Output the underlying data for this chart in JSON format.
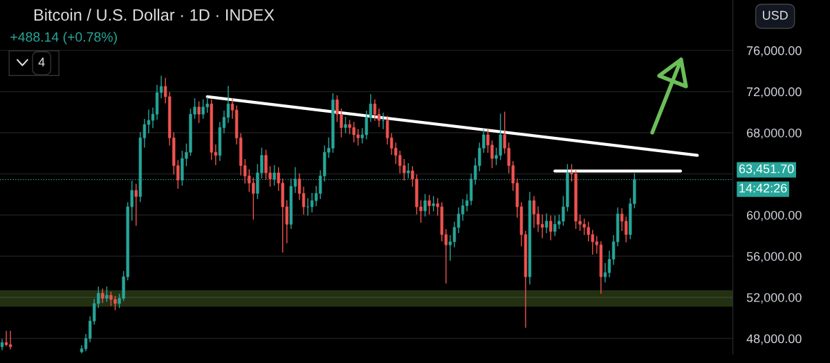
{
  "chart_data": {
    "type": "candlestick",
    "title": "Bitcoin / U.S. Dollar · 1D · INDEX",
    "annotations": [
      "+488.14 (+0.78%)",
      "4",
      "USD",
      "14:42:26"
    ],
    "categories": [
      null,
      null,
      null,
      null,
      null,
      null,
      null,
      null,
      null,
      null,
      null,
      null,
      null,
      null,
      null,
      null,
      null,
      null,
      null,
      null,
      null,
      null,
      null,
      null,
      null,
      null,
      null,
      null,
      null,
      null,
      null,
      null,
      null,
      null,
      null,
      null,
      null,
      null,
      null,
      null,
      null,
      null,
      null,
      null,
      null,
      null,
      null,
      null,
      null,
      null,
      null,
      null,
      null,
      null,
      null,
      null,
      null,
      null,
      null,
      null,
      null,
      null,
      null,
      null,
      null,
      null,
      null,
      null,
      null,
      null,
      null,
      null,
      null,
      null,
      null,
      null,
      null,
      null,
      null,
      null,
      null,
      null,
      null,
      null,
      null,
      null,
      null,
      null,
      null,
      null,
      null,
      null,
      null,
      null,
      null,
      null,
      null,
      null,
      null,
      null,
      null,
      null,
      null,
      null,
      null,
      null,
      null,
      null,
      null,
      null,
      null,
      null,
      null,
      null,
      null,
      null,
      null,
      null,
      null,
      null,
      null,
      null,
      null,
      null,
      null,
      null,
      null,
      null,
      null,
      null,
      null,
      null,
      null,
      null,
      null,
      null,
      null,
      null,
      null,
      null,
      null,
      null,
      null,
      null,
      null,
      null,
      null,
      null,
      null,
      null,
      null,
      null,
      null,
      null,
      null,
      null,
      null,
      null,
      null,
      null,
      null,
      null,
      null,
      null,
      null,
      null,
      null,
      null,
      null,
      null,
      null,
      null,
      null,
      null,
      null
    ],
    "colors": [
      "#26a69a",
      "#ef5350",
      "#ef5350",
      null,
      null,
      null,
      null,
      null,
      null,
      null,
      null,
      null,
      null,
      null,
      null,
      null,
      null,
      null,
      null,
      "#26a69a",
      "#26a69a",
      "#26a69a",
      "#26a69a",
      "#26a69a",
      "#ef5350",
      "#26a69a",
      "#ef5350",
      "#ef5350",
      "#26a69a",
      "#26a69a",
      "#26a69a",
      "#26a69a",
      "#ef5350",
      "#26a69a",
      "#26a69a",
      "#26a69a",
      "#26a69a",
      "#26a69a",
      "#26a69a",
      "#ef5350",
      "#ef5350",
      "#ef5350",
      "#ef5350",
      "#26a69a",
      "#26a69a",
      "#26a69a",
      "#26a69a",
      "#ef5350",
      "#26a69a",
      "#26a69a",
      "#ef5350",
      "#ef5350",
      "#26a69a",
      "#26a69a",
      "#26a69a",
      "#ef5350",
      "#ef5350",
      "#ef5350",
      "#ef5350",
      "#ef5350",
      "#ef5350",
      "#26a69a",
      "#26a69a",
      "#ef5350",
      "#ef5350",
      "#26a69a",
      "#ef5350",
      "#ef5350",
      "#ef5350",
      "#26a69a",
      "#26a69a",
      "#ef5350",
      "#ef5350",
      "#26a69a",
      "#26a69a",
      "#26a69a",
      "#26a69a",
      "#26a69a",
      "#26a69a",
      "#26a69a",
      "#ef5350",
      "#ef5350",
      "#26a69a",
      "#ef5350",
      "#ef5350",
      "#ef5350",
      "#26a69a",
      "#26a69a",
      "#26a69a",
      "#ef5350",
      "#ef5350",
      "#26a69a",
      "#ef5350",
      "#ef5350",
      "#ef5350",
      "#ef5350",
      "#ef5350",
      "#26a69a",
      "#ef5350",
      "#ef5350",
      "#ef5350",
      "#26a69a",
      "#ef5350",
      "#26a69a",
      "#ef5350",
      "#ef5350",
      "#ef5350",
      "#26a69a",
      "#26a69a",
      "#26a69a",
      "#26a69a",
      "#26a69a",
      "#26a69a",
      "#26a69a",
      "#26a69a",
      "#26a69a",
      "#ef5350",
      "#ef5350",
      "#26a69a",
      "#26a69a",
      "#ef5350",
      "#ef5350",
      "#ef5350",
      "#ef5350",
      "#ef5350",
      "#ef5350",
      "#26a69a",
      "#ef5350",
      "#ef5350",
      "#ef5350",
      "#26a69a",
      "#ef5350",
      "#26a69a",
      "#26a69a",
      "#26a69a",
      "#26a69a",
      "#ef5350",
      "#ef5350",
      "#ef5350",
      "#ef5350",
      "#ef5350",
      "#ef5350",
      "#ef5350",
      "#ef5350",
      "#26a69a",
      "#26a69a",
      "#26a69a",
      "#26a69a",
      "#ef5350",
      "#ef5350",
      "#26a69a",
      "#26a69a",
      null,
      null,
      null,
      null,
      null,
      null,
      null,
      null,
      null,
      null,
      null,
      null,
      null,
      null,
      null,
      null,
      null,
      null,
      null,
      null,
      null,
      null,
      null
    ],
    "ohlc": [
      [
        47200,
        47900,
        46900,
        47600
      ],
      [
        47600,
        48700,
        47300,
        47400
      ],
      [
        47400,
        48700,
        47000,
        47200
      ],
      null,
      null,
      null,
      null,
      null,
      null,
      null,
      null,
      null,
      null,
      null,
      null,
      null,
      null,
      null,
      null,
      [
        46700,
        47300,
        46600,
        47000
      ],
      [
        47000,
        48400,
        46800,
        48000
      ],
      [
        48000,
        50100,
        47700,
        49700
      ],
      [
        49700,
        51800,
        49400,
        51400
      ],
      [
        51400,
        53000,
        51000,
        52400
      ],
      [
        52400,
        52800,
        51500,
        51900
      ],
      [
        51900,
        53000,
        51600,
        52200
      ],
      [
        52200,
        52500,
        51200,
        51800
      ],
      [
        51800,
        52100,
        50800,
        51400
      ],
      [
        51400,
        52300,
        51000,
        51900
      ],
      [
        51900,
        54500,
        51700,
        54000
      ],
      [
        54000,
        61200,
        53700,
        60800
      ],
      [
        60800,
        63300,
        59500,
        62400
      ],
      [
        62400,
        63000,
        59000,
        61800
      ],
      [
        61800,
        68000,
        61300,
        67500
      ],
      [
        67500,
        69300,
        66600,
        68800
      ],
      [
        68800,
        70200,
        68000,
        69200
      ],
      [
        69200,
        70400,
        68500,
        69800
      ],
      [
        69800,
        72600,
        69300,
        71900
      ],
      [
        71900,
        73500,
        71400,
        72500
      ],
      [
        72500,
        73300,
        70900,
        71500
      ],
      [
        71500,
        71900,
        66800,
        67500
      ],
      [
        67500,
        68000,
        64000,
        64800
      ],
      [
        64800,
        65300,
        62600,
        63400
      ],
      [
        63400,
        66200,
        62900,
        65500
      ],
      [
        65500,
        66900,
        64800,
        66100
      ],
      [
        66100,
        70300,
        65800,
        69800
      ],
      [
        69800,
        71300,
        69400,
        70500
      ],
      [
        70500,
        71000,
        69000,
        69800
      ],
      [
        69800,
        71200,
        69400,
        70500
      ],
      [
        70500,
        71400,
        70000,
        70800
      ],
      [
        70800,
        71200,
        65400,
        66100
      ],
      [
        66100,
        66800,
        64900,
        65800
      ],
      [
        65800,
        69000,
        65300,
        68500
      ],
      [
        68500,
        70100,
        68000,
        69500
      ],
      [
        69500,
        72500,
        69000,
        70800
      ],
      [
        70800,
        71300,
        69400,
        70200
      ],
      [
        70200,
        70600,
        66900,
        67500
      ],
      [
        67500,
        67900,
        63900,
        64800
      ],
      [
        64800,
        65400,
        63100,
        63800
      ],
      [
        63800,
        64400,
        62300,
        63100
      ],
      [
        63100,
        63600,
        59600,
        62100
      ],
      [
        62100,
        64900,
        61600,
        64100
      ],
      [
        64100,
        66500,
        63600,
        65800
      ],
      [
        65800,
        66300,
        63500,
        64100
      ],
      [
        64100,
        64700,
        62800,
        63500
      ],
      [
        63500,
        64800,
        62900,
        64100
      ],
      [
        64100,
        64600,
        62400,
        63100
      ],
      [
        63100,
        63500,
        56400,
        60800
      ],
      [
        60800,
        61400,
        57300,
        59100
      ],
      [
        59100,
        63500,
        58700,
        62800
      ],
      [
        62800,
        64600,
        62200,
        63500
      ],
      [
        63500,
        64000,
        61500,
        62100
      ],
      [
        62100,
        62700,
        60100,
        60800
      ],
      [
        60800,
        61600,
        60000,
        60800
      ],
      [
        60800,
        62100,
        60300,
        61400
      ],
      [
        61400,
        62800,
        60900,
        62100
      ],
      [
        62100,
        64300,
        61600,
        63800
      ],
      [
        63800,
        66700,
        63300,
        66100
      ],
      [
        66100,
        67500,
        65600,
        66500
      ],
      [
        66500,
        71800,
        66100,
        71200
      ],
      [
        71200,
        71600,
        69100,
        69800
      ],
      [
        69800,
        70300,
        67600,
        68500
      ],
      [
        68500,
        69500,
        68000,
        68800
      ],
      [
        68800,
        69200,
        67900,
        68500
      ],
      [
        68500,
        69000,
        67100,
        67800
      ],
      [
        67800,
        68300,
        66800,
        67500
      ],
      [
        67500,
        68400,
        67000,
        67800
      ],
      [
        67800,
        70100,
        67400,
        69500
      ],
      [
        69500,
        71700,
        69100,
        70800
      ],
      [
        70800,
        71200,
        69200,
        69800
      ],
      [
        69800,
        70300,
        68600,
        69200
      ],
      [
        69200,
        69900,
        68400,
        69200
      ],
      [
        69200,
        69600,
        66900,
        67500
      ],
      [
        67500,
        67900,
        65900,
        66500
      ],
      [
        66500,
        67000,
        65000,
        65800
      ],
      [
        65800,
        66200,
        64100,
        64800
      ],
      [
        64800,
        65400,
        63400,
        64100
      ],
      [
        64100,
        65000,
        63600,
        64300
      ],
      [
        64300,
        64700,
        62800,
        63500
      ],
      [
        63500,
        63900,
        60100,
        60800
      ],
      [
        60800,
        61400,
        59300,
        60400
      ],
      [
        60400,
        62000,
        59900,
        61400
      ],
      [
        61400,
        61900,
        60100,
        60900
      ],
      [
        60900,
        61800,
        60400,
        61100
      ],
      [
        61100,
        61600,
        60000,
        60800
      ],
      [
        60800,
        61200,
        57500,
        58100
      ],
      [
        58100,
        58600,
        53400,
        57100
      ],
      [
        57100,
        58000,
        55600,
        57400
      ],
      [
        57400,
        59300,
        56900,
        58800
      ],
      [
        58800,
        60700,
        58300,
        60100
      ],
      [
        60100,
        61500,
        59500,
        60900
      ],
      [
        60900,
        62000,
        60400,
        61400
      ],
      [
        61400,
        64000,
        61000,
        63500
      ],
      [
        63500,
        65500,
        63000,
        64800
      ],
      [
        64800,
        67000,
        64300,
        66500
      ],
      [
        66500,
        68300,
        66100,
        67800
      ],
      [
        67800,
        68300,
        66100,
        66800
      ],
      [
        66800,
        67200,
        64600,
        65500
      ],
      [
        65500,
        66500,
        64900,
        65800
      ],
      [
        65800,
        69800,
        65400,
        67800
      ],
      [
        67800,
        70000,
        66000,
        66500
      ],
      [
        66500,
        67000,
        64100,
        64800
      ],
      [
        64800,
        65200,
        62400,
        63100
      ],
      [
        63100,
        63500,
        59800,
        60800
      ],
      [
        60800,
        61200,
        57000,
        58100
      ],
      [
        58100,
        58400,
        49100,
        54000
      ],
      [
        54000,
        62200,
        53300,
        61400
      ],
      [
        61400,
        61800,
        58800,
        60100
      ],
      [
        60100,
        60800,
        58400,
        59100
      ],
      [
        59100,
        60000,
        57800,
        58800
      ],
      [
        58800,
        60100,
        58300,
        59400
      ],
      [
        59400,
        59900,
        57600,
        58400
      ],
      [
        58400,
        59900,
        58000,
        59100
      ],
      [
        59100,
        60000,
        58700,
        59400
      ],
      [
        59400,
        61800,
        59000,
        60800
      ],
      [
        60800,
        64900,
        60400,
        64100
      ],
      [
        64100,
        64900,
        63300,
        64000
      ],
      [
        64000,
        64300,
        58700,
        59400
      ],
      [
        59400,
        60000,
        58500,
        59100
      ],
      [
        59100,
        59600,
        58100,
        58800
      ],
      [
        58800,
        59300,
        57500,
        58100
      ],
      [
        58100,
        58500,
        56200,
        57400
      ],
      [
        57400,
        57900,
        56300,
        57100
      ],
      [
        57100,
        57400,
        52400,
        54000
      ],
      [
        54000,
        55300,
        53500,
        54400
      ],
      [
        54400,
        56500,
        54000,
        55700
      ],
      [
        55700,
        58000,
        55200,
        57400
      ],
      [
        57400,
        60700,
        57000,
        60100
      ],
      [
        60100,
        60600,
        58500,
        59400
      ],
      [
        59400,
        59800,
        57400,
        58100
      ],
      [
        58100,
        61600,
        57700,
        61100
      ],
      [
        61100,
        64000,
        60700,
        63451.7
      ],
      null,
      null,
      null,
      null,
      null,
      null,
      null,
      null,
      null,
      null,
      null,
      null,
      null,
      null,
      null,
      null,
      null,
      null,
      null,
      null,
      null,
      null,
      null
    ],
    "series": [
      {
        "type": "line",
        "color": "#ffffff",
        "values": [
          null,
          null,
          null,
          null,
          null,
          null,
          null,
          null,
          null,
          null,
          null,
          null,
          null,
          null,
          null,
          null,
          null,
          null,
          null,
          null,
          null,
          null,
          null,
          null,
          null,
          null,
          null,
          null,
          null,
          null,
          null,
          null,
          null,
          null,
          null,
          null,
          null,
          null,
          null,
          null,
          null,
          null,
          null,
          null,
          null,
          null,
          null,
          null,
          null,
          71500,
          null,
          null,
          null,
          null,
          null,
          null,
          null,
          null,
          null,
          null,
          null,
          null,
          null,
          null,
          null,
          null,
          null,
          null,
          null,
          null,
          null,
          null,
          null,
          null,
          null,
          null,
          null,
          null,
          null,
          null,
          null,
          null,
          null,
          null,
          null,
          null,
          null,
          null,
          null,
          null,
          null,
          null,
          null,
          null,
          null,
          null,
          null,
          null,
          null,
          null,
          null,
          null,
          null,
          null,
          null,
          null,
          null,
          null,
          null,
          null,
          null,
          null,
          null,
          null,
          null,
          null,
          null,
          null,
          null,
          null,
          null,
          null,
          null,
          null,
          null,
          null,
          null,
          null,
          null,
          null,
          null,
          null,
          null,
          null,
          null,
          null,
          null,
          null,
          null,
          null,
          null,
          null,
          null,
          null,
          null,
          null,
          null,
          null,
          null,
          null,
          null,
          null,
          null,
          null,
          null,
          null,
          null,
          null,
          null,
          null,
          null,
          null,
          null,
          null,
          null,
          null,
          65800,
          null,
          null,
          null,
          null,
          null,
          null,
          null,
          null
        ]
      },
      {
        "type": "line",
        "color": "#ffffff",
        "values": [
          null,
          null,
          null,
          null,
          null,
          null,
          null,
          null,
          null,
          null,
          null,
          null,
          null,
          null,
          null,
          null,
          null,
          null,
          null,
          null,
          null,
          null,
          null,
          null,
          null,
          null,
          null,
          null,
          null,
          null,
          null,
          null,
          null,
          null,
          null,
          null,
          null,
          null,
          null,
          null,
          null,
          null,
          null,
          null,
          null,
          null,
          null,
          null,
          null,
          null,
          null,
          null,
          null,
          null,
          null,
          null,
          null,
          null,
          null,
          null,
          null,
          null,
          null,
          null,
          null,
          null,
          null,
          null,
          null,
          null,
          null,
          null,
          null,
          null,
          null,
          null,
          null,
          null,
          null,
          null,
          null,
          null,
          null,
          null,
          null,
          null,
          null,
          null,
          null,
          null,
          null,
          null,
          null,
          null,
          null,
          null,
          null,
          null,
          null,
          null,
          null,
          null,
          null,
          null,
          null,
          null,
          null,
          null,
          null,
          null,
          null,
          null,
          null,
          null,
          null,
          null,
          null,
          null,
          null,
          null,
          null,
          null,
          null,
          null,
          null,
          null,
          null,
          null,
          null,
          null,
          null,
          null,
          64270,
          null,
          null,
          null,
          null,
          null,
          null,
          null,
          null,
          null,
          null,
          null,
          null,
          null,
          null,
          null,
          null,
          null,
          null,
          null,
          null,
          null,
          null,
          null,
          null,
          null,
          null,
          null,
          null,
          null,
          64270,
          null,
          null,
          null,
          null,
          null,
          null,
          null,
          null,
          null,
          null,
          null,
          null
        ]
      }
    ],
    "bands": [
      {
        "axis": "y",
        "from": 51150,
        "to": 52640,
        "color": "#8bc34a"
      }
    ],
    "ylim": [
      46500,
      80900
    ],
    "yticks": [
      {
        "value": 48000,
        "label": "48,000.00"
      },
      {
        "value": 52000,
        "label": "52,000.00"
      },
      {
        "value": 56000,
        "label": "56,000.00"
      },
      {
        "value": 60000,
        "label": "60,000.00"
      },
      {
        "value": 64000,
        "label": null
      },
      {
        "value": 68000,
        "label": "68,000.00"
      },
      {
        "value": 72000,
        "label": "72,000.00"
      },
      {
        "value": 76000,
        "label": "76,000.00"
      }
    ],
    "ref_lines": [
      {
        "axis": "y",
        "value": 63451.7,
        "label": "63,451.70",
        "color": "#26a69a",
        "line_style": "dotted"
      }
    ],
    "grid": "y",
    "tick_labels": "y"
  }
}
